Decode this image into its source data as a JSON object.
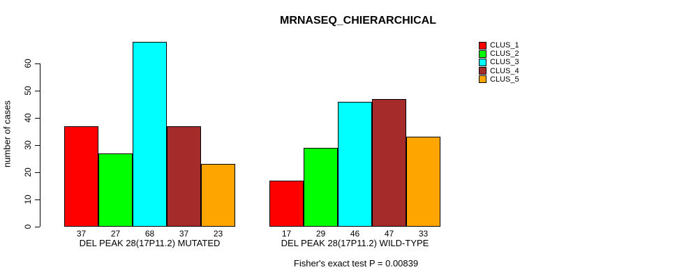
{
  "chart_data": {
    "type": "bar",
    "title": "MRNASEQ_CHIERARCHICAL",
    "ylabel": "number of cases",
    "caption": "Fisher's exact test P = 0.00839",
    "ylim": [
      0,
      60
    ],
    "yticks": [
      0,
      10,
      20,
      30,
      40,
      50,
      60
    ],
    "grid": false,
    "legend_position": "right",
    "series": [
      {
        "name": "CLUS_1",
        "color": "#FF0000"
      },
      {
        "name": "CLUS_2",
        "color": "#00FF00"
      },
      {
        "name": "CLUS_3",
        "color": "#00FFFF"
      },
      {
        "name": "CLUS_4",
        "color": "#A52A2A"
      },
      {
        "name": "CLUS_5",
        "color": "#FFA500"
      }
    ],
    "groups": [
      {
        "label": "DEL PEAK 28(17P11.2) MUTATED",
        "values": [
          37,
          27,
          68,
          37,
          23
        ]
      },
      {
        "label": "DEL PEAK 28(17P11.2) WILD-TYPE",
        "values": [
          17,
          29,
          46,
          47,
          33
        ]
      }
    ]
  }
}
